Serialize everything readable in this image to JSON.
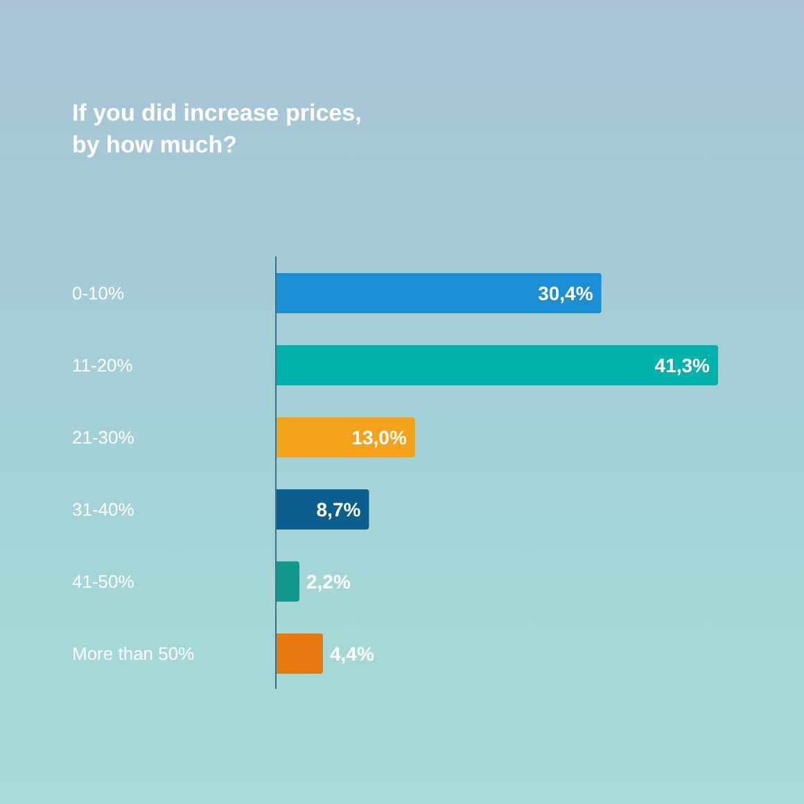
{
  "chart_data": {
    "type": "bar",
    "orientation": "horizontal",
    "title": "If you did increase prices, by how much?",
    "categories": [
      "0-10%",
      "11-20%",
      "21-30%",
      "31-40%",
      "41-50%",
      "More than 50%"
    ],
    "values": [
      30.4,
      41.3,
      13.0,
      8.7,
      2.2,
      4.4
    ],
    "colors": [
      "#1a8fd6",
      "#00b2a9",
      "#f5a21b",
      "#0b5f8f",
      "#109a8c",
      "#e8790f"
    ],
    "value_labels": [
      "30,4%",
      "41,3%",
      "13,0%",
      "8,7%",
      "2,2%",
      "4,4%"
    ],
    "grid": false,
    "legend": false
  }
}
